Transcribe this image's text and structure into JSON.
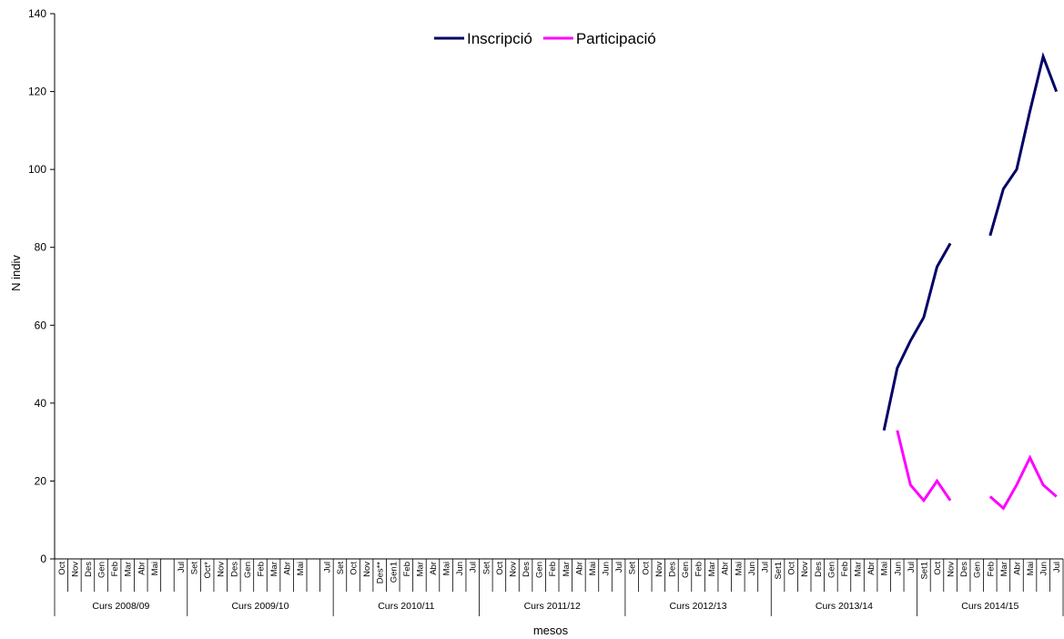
{
  "chart_data": {
    "type": "line",
    "title": "",
    "xlabel": "mesos",
    "ylabel": "N indiv",
    "ylim": [
      0,
      140
    ],
    "yticks": [
      0,
      20,
      40,
      60,
      80,
      100,
      120,
      140
    ],
    "legend_position": "top-center",
    "grid": false,
    "groups": [
      {
        "label": "Curs 2008/09",
        "months": [
          "Oct",
          "Nov",
          "Des",
          "Gen",
          "Feb",
          "Mar",
          "Abr",
          "Mai",
          "",
          "Jul"
        ]
      },
      {
        "label": "Curs 2009/10",
        "months": [
          "Set",
          "Oct*",
          "Nov",
          "Des",
          "Gen",
          "Feb",
          "Mar",
          "Abr",
          "Mai",
          "",
          "Jul"
        ]
      },
      {
        "label": "Curs 2010/11",
        "months": [
          "Set",
          "Oct",
          "Nov",
          "Des**",
          "Gen1",
          "Feb",
          "Mar",
          "Abr",
          "Mai",
          "Jun",
          "Jul"
        ]
      },
      {
        "label": "Curs 2011/12",
        "months": [
          "Set",
          "Oct",
          "Nov",
          "Des",
          "Gen",
          "Feb",
          "Mar",
          "Abr",
          "Mai",
          "Jun",
          "Jul"
        ]
      },
      {
        "label": "Curs 2012/13",
        "months": [
          "Set",
          "Oct",
          "Nov",
          "Des",
          "Gen",
          "Feb",
          "Mar",
          "Abr",
          "Mai",
          "Jun",
          "Jul"
        ]
      },
      {
        "label": "Curs 2013/14",
        "months": [
          "Set1",
          "Oct",
          "Nov",
          "Des",
          "Gen",
          "Feb",
          "Mar",
          "Abr",
          "Mai",
          "Jun",
          "Jul"
        ]
      },
      {
        "label": "Curs 2014/15",
        "months": [
          "Set1",
          "Oct",
          "Nov",
          "Des",
          "Gen",
          "Feb",
          "Mar",
          "Abr",
          "Mai",
          "Jun",
          "Jul"
        ]
      }
    ],
    "series": [
      {
        "name": "Inscripció",
        "color": "#000066",
        "values": [
          null,
          null,
          null,
          null,
          null,
          null,
          null,
          null,
          null,
          null,
          null,
          null,
          null,
          null,
          null,
          null,
          null,
          null,
          null,
          null,
          null,
          null,
          null,
          null,
          null,
          null,
          null,
          null,
          null,
          null,
          null,
          null,
          null,
          null,
          null,
          null,
          null,
          null,
          null,
          null,
          null,
          null,
          null,
          null,
          null,
          null,
          null,
          null,
          null,
          null,
          null,
          null,
          null,
          null,
          null,
          null,
          null,
          null,
          null,
          null,
          null,
          null,
          33,
          49,
          56,
          62,
          75,
          81,
          null,
          null,
          83,
          95,
          100,
          115,
          129,
          120
        ]
      },
      {
        "name": "Participació",
        "color": "#ff00ff",
        "values": [
          null,
          null,
          null,
          null,
          null,
          null,
          null,
          null,
          null,
          null,
          null,
          null,
          null,
          null,
          null,
          null,
          null,
          null,
          null,
          null,
          null,
          null,
          null,
          null,
          null,
          null,
          null,
          null,
          null,
          null,
          null,
          null,
          null,
          null,
          null,
          null,
          null,
          null,
          null,
          null,
          null,
          null,
          null,
          null,
          null,
          null,
          null,
          null,
          null,
          null,
          null,
          null,
          null,
          null,
          null,
          null,
          null,
          null,
          null,
          null,
          null,
          null,
          null,
          33,
          19,
          15,
          20,
          15,
          null,
          null,
          16,
          13,
          19,
          26,
          19,
          16
        ]
      }
    ]
  }
}
